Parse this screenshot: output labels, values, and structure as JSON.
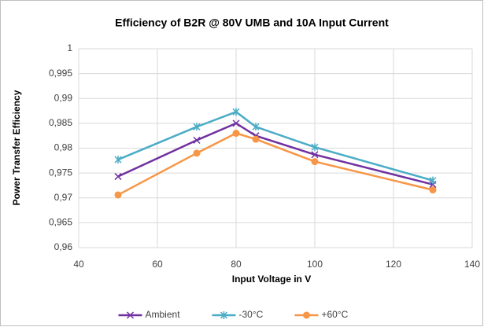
{
  "chart_data": {
    "type": "line",
    "title": "Efficiency of B2R @ 80V UMB and 10A Input Current",
    "x_label": "Input Voltage in V",
    "y_label": "Power Transfer Efficiency",
    "x": [
      50,
      70,
      80,
      85,
      100,
      130
    ],
    "series": [
      {
        "name": "Ambient",
        "color": "#7030a0",
        "marker": "x",
        "values": [
          0.9743,
          0.9816,
          0.985,
          0.9825,
          0.9787,
          0.9727
        ]
      },
      {
        "name": "-30°C",
        "color": "#4bacc6",
        "marker": "asterisk",
        "values": [
          0.9777,
          0.9843,
          0.9873,
          0.9843,
          0.9802,
          0.9735
        ]
      },
      {
        "name": "+60°C",
        "color": "#f79646",
        "marker": "circle",
        "values": [
          0.9706,
          0.979,
          0.983,
          0.9818,
          0.9773,
          0.9716
        ]
      }
    ],
    "xlim": [
      40,
      140
    ],
    "xticks": [
      40,
      60,
      80,
      100,
      120,
      140
    ],
    "ylim": [
      0.96,
      1
    ],
    "yticks": [
      {
        "value": 0.96,
        "label": "0,96"
      },
      {
        "value": 0.965,
        "label": "0,965"
      },
      {
        "value": 0.97,
        "label": "0,97"
      },
      {
        "value": 0.975,
        "label": "0,975"
      },
      {
        "value": 0.98,
        "label": "0,98"
      },
      {
        "value": 0.985,
        "label": "0,985"
      },
      {
        "value": 0.99,
        "label": "0,99"
      },
      {
        "value": 0.995,
        "label": "0,995"
      },
      1
    ],
    "grid": true,
    "legend": "bottom"
  }
}
